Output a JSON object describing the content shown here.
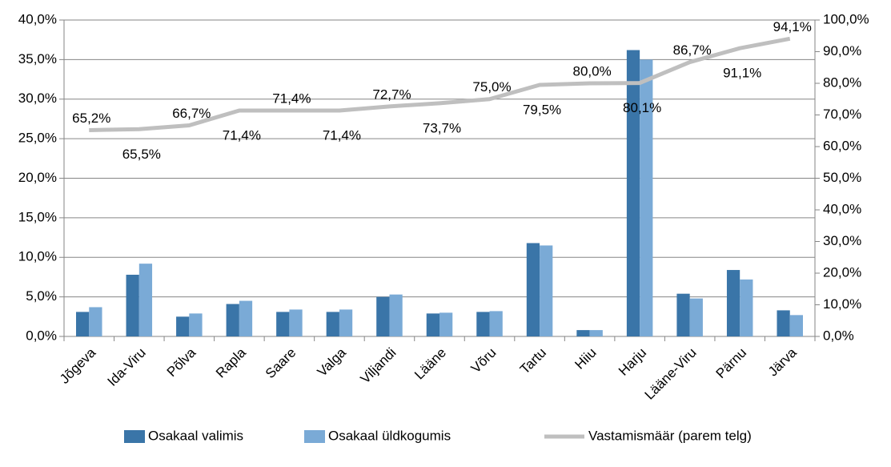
{
  "chart_data": {
    "type": "bar",
    "categories": [
      "Jõgeva",
      "Ida-Viru",
      "Põlva",
      "Rapla",
      "Saare",
      "Valga",
      "Viljandi",
      "Lääne",
      "Võru",
      "Tartu",
      "Hiiu",
      "Harju",
      "Lääne-Viru",
      "Pärnu",
      "Järva"
    ],
    "series": [
      {
        "name": "Osakaal valimis",
        "color": "#3a75a8",
        "type": "bar",
        "values": [
          3.1,
          7.8,
          2.5,
          4.1,
          3.1,
          3.1,
          5.0,
          2.9,
          3.1,
          11.8,
          0.8,
          36.2,
          5.4,
          8.4,
          3.3
        ]
      },
      {
        "name": "Osakaal üldkogumis",
        "color": "#7aaad6",
        "type": "bar",
        "values": [
          3.7,
          9.2,
          2.9,
          4.5,
          3.4,
          3.4,
          5.3,
          3.0,
          3.2,
          11.5,
          0.8,
          35.0,
          4.8,
          7.2,
          2.7
        ]
      },
      {
        "name": "Vastamismäär (parem telg)",
        "color": "#bfbfbf",
        "type": "line",
        "axis": "y2",
        "values": [
          65.2,
          65.5,
          66.7,
          71.4,
          71.4,
          71.4,
          72.7,
          73.7,
          75.0,
          79.5,
          80.0,
          80.1,
          86.7,
          91.1,
          94.1
        ],
        "value_labels": [
          "65,2%",
          "65,5%",
          "66,7%",
          "71,4%",
          "71,4%",
          "71,4%",
          "72,7%",
          "73,7%",
          "75,0%",
          "79,5%",
          "80,0%",
          "80,1%",
          "86,7%",
          "91,1%",
          "94,1%"
        ]
      }
    ],
    "ylim": [
      0,
      40
    ],
    "yticks": [
      {
        "value": 0,
        "label": "0,0%"
      },
      {
        "value": 5,
        "label": "5,0%"
      },
      {
        "value": 10,
        "label": "10,0%"
      },
      {
        "value": 15,
        "label": "15,0%"
      },
      {
        "value": 20,
        "label": "20,0%"
      },
      {
        "value": 25,
        "label": "25,0%"
      },
      {
        "value": 30,
        "label": "30,0%"
      },
      {
        "value": 35,
        "label": "35,0%"
      },
      {
        "value": 40,
        "label": "40,0%"
      }
    ],
    "y2lim": [
      0,
      100
    ],
    "y2ticks": [
      {
        "value": 0,
        "label": "0,0%"
      },
      {
        "value": 10,
        "label": "10,0%"
      },
      {
        "value": 20,
        "label": "20,0%"
      },
      {
        "value": 30,
        "label": "30,0%"
      },
      {
        "value": 40,
        "label": "40,0%"
      },
      {
        "value": 50,
        "label": "50,0%"
      },
      {
        "value": 60,
        "label": "60,0%"
      },
      {
        "value": 70,
        "label": "70,0%"
      },
      {
        "value": 80,
        "label": "80,0%"
      },
      {
        "value": 90,
        "label": "90,0%"
      },
      {
        "value": 100,
        "label": "100,0%"
      }
    ],
    "grid": true,
    "legend": "bottom"
  }
}
